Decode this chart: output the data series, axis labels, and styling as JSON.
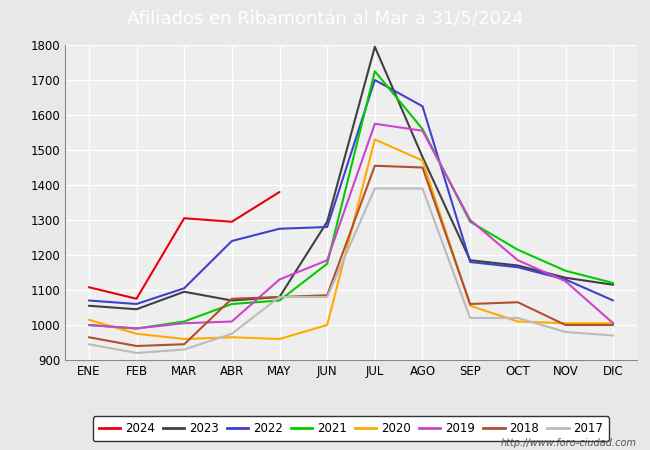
{
  "title": "Afiliados en Ribamontán al Mar a 31/5/2024",
  "header_bg": "#5b9bd5",
  "ylim": [
    900,
    1800
  ],
  "yticks": [
    900,
    1000,
    1100,
    1200,
    1300,
    1400,
    1500,
    1600,
    1700,
    1800
  ],
  "months": [
    "ENE",
    "FEB",
    "MAR",
    "ABR",
    "MAY",
    "JUN",
    "JUL",
    "AGO",
    "SEP",
    "OCT",
    "NOV",
    "DIC"
  ],
  "series": {
    "2024": {
      "color": "#e8000a",
      "data": [
        1108,
        1075,
        1305,
        1295,
        1380,
        null,
        null,
        null,
        null,
        null,
        null,
        null
      ]
    },
    "2023": {
      "color": "#404040",
      "data": [
        1055,
        1045,
        1095,
        1070,
        1080,
        1295,
        1795,
        1480,
        1185,
        1170,
        1135,
        1115
      ]
    },
    "2022": {
      "color": "#4040cc",
      "data": [
        1070,
        1060,
        1105,
        1240,
        1275,
        1280,
        1700,
        1625,
        1180,
        1165,
        1130,
        1070
      ]
    },
    "2021": {
      "color": "#00cc00",
      "data": [
        1000,
        990,
        1010,
        1060,
        1070,
        1175,
        1725,
        1560,
        1295,
        1215,
        1155,
        1120
      ]
    },
    "2020": {
      "color": "#ffaa00",
      "data": [
        1015,
        975,
        960,
        965,
        960,
        1000,
        1530,
        1470,
        1055,
        1010,
        1005,
        1005
      ]
    },
    "2019": {
      "color": "#cc44cc",
      "data": [
        1000,
        990,
        1005,
        1010,
        1130,
        1185,
        1575,
        1555,
        1300,
        1185,
        1125,
        1005
      ]
    },
    "2018": {
      "color": "#b05030",
      "data": [
        965,
        940,
        945,
        1075,
        1080,
        1085,
        1455,
        1450,
        1060,
        1065,
        1000,
        1000
      ]
    },
    "2017": {
      "color": "#bbbbbb",
      "data": [
        945,
        920,
        930,
        975,
        1080,
        1080,
        1390,
        1390,
        1020,
        1020,
        980,
        970
      ]
    }
  },
  "legend_order": [
    "2024",
    "2023",
    "2022",
    "2021",
    "2020",
    "2019",
    "2018",
    "2017"
  ],
  "footer_text": "http://www.foro-ciudad.com",
  "bg_color": "#e8e8e8",
  "plot_bg": "#eeeeee",
  "grid_color": "#ffffff"
}
